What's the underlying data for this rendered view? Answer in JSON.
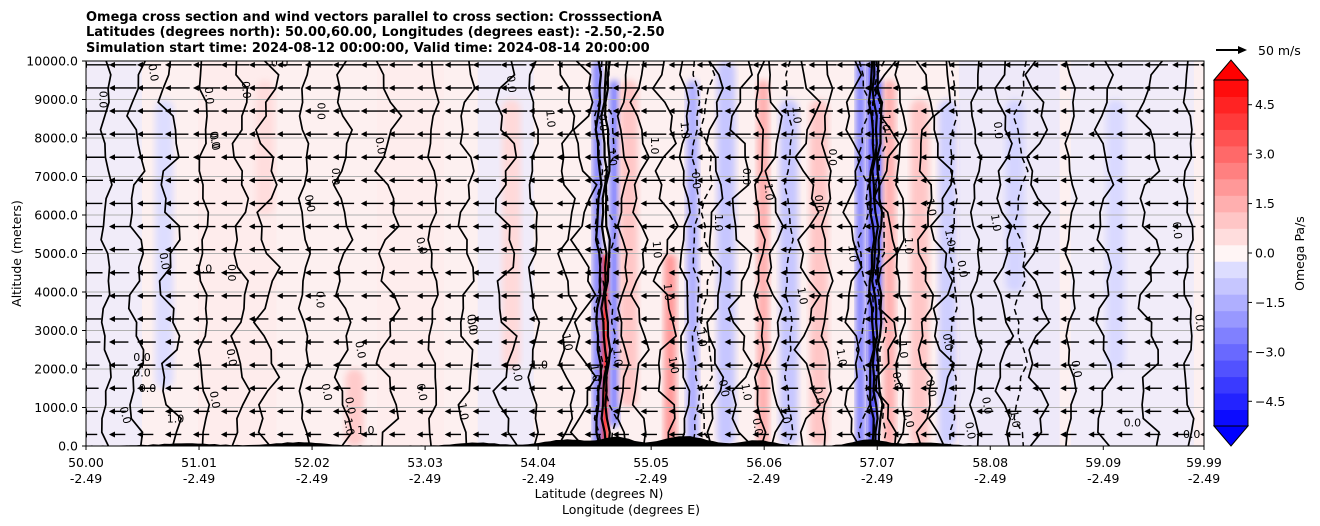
{
  "chart_data": {
    "type": "contourf",
    "title_lines": [
      "Omega cross section and wind vectors parallel to cross section: CrosssectionA",
      "Latitudes (degrees north): 50.00,60.00, Longitudes (degrees east): -2.50,-2.50",
      "Simulation start time: 2024-08-12 00:00:00, Valid time: 2024-08-14 20:00:00"
    ],
    "ylabel": "Altitude (meters)",
    "xlabel_lat": "Latitude (degrees N)",
    "xlabel_lon": "Longitude (degrees E)",
    "ylim": [
      0,
      10000
    ],
    "y_ticks": [
      {
        "value": 0,
        "label": "0.0"
      },
      {
        "value": 1000,
        "label": "1000.0"
      },
      {
        "value": 2000,
        "label": "2000.0"
      },
      {
        "value": 3000,
        "label": "3000.0"
      },
      {
        "value": 4000,
        "label": "4000.0"
      },
      {
        "value": 5000,
        "label": "5000.0"
      },
      {
        "value": 6000,
        "label": "6000.0"
      },
      {
        "value": 7000,
        "label": "7000.0"
      },
      {
        "value": 8000,
        "label": "8000.0"
      },
      {
        "value": 9000,
        "label": "9000.0"
      },
      {
        "value": 10000,
        "label": "10000.0"
      }
    ],
    "xlim": [
      50.0,
      59.99
    ],
    "x_ticks": [
      {
        "lat": "50.00",
        "lon": "-2.49",
        "value": 50.0
      },
      {
        "lat": "51.01",
        "lon": "-2.49",
        "value": 51.01
      },
      {
        "lat": "52.02",
        "lon": "-2.49",
        "value": 52.02
      },
      {
        "lat": "53.03",
        "lon": "-2.49",
        "value": 53.03
      },
      {
        "lat": "54.04",
        "lon": "-2.49",
        "value": 54.04
      },
      {
        "lat": "55.05",
        "lon": "-2.49",
        "value": 55.05
      },
      {
        "lat": "56.06",
        "lon": "-2.49",
        "value": 56.06
      },
      {
        "lat": "57.07",
        "lon": "-2.49",
        "value": 57.07
      },
      {
        "lat": "58.08",
        "lon": "-2.49",
        "value": 58.08
      },
      {
        "lat": "59.09",
        "lon": "-2.49",
        "value": 59.09
      },
      {
        "lat": "59.99",
        "lon": "-2.49",
        "value": 59.99
      }
    ],
    "grid": "horizontal",
    "colorbar": {
      "label": "Omega Pa/s",
      "range": [
        -5.25,
        5.25
      ],
      "ticks": [
        {
          "value": 4.5,
          "label": "4.5"
        },
        {
          "value": 3.0,
          "label": "3.0"
        },
        {
          "value": 1.5,
          "label": "1.5"
        },
        {
          "value": 0.0,
          "label": "0.0"
        },
        {
          "value": -1.5,
          "label": "−1.5"
        },
        {
          "value": -3.0,
          "label": "−3.0"
        },
        {
          "value": -4.5,
          "label": "−4.5"
        }
      ],
      "extend": "both",
      "low_color": "#0000ff",
      "high_color": "#ff0000"
    },
    "quiver_key": {
      "label": "50 m/s"
    },
    "omega_features": [
      {
        "lat": 54.63,
        "alt_min": 0,
        "alt_max": 5000,
        "value": 4.5
      },
      {
        "lat": 54.57,
        "alt_min": 0,
        "alt_max": 10000,
        "value": -2.5
      },
      {
        "lat": 54.72,
        "alt_min": 500,
        "alt_max": 9500,
        "value": -2.5
      },
      {
        "lat": 54.85,
        "alt_min": 1000,
        "alt_max": 9500,
        "value": 1.0
      },
      {
        "lat": 55.22,
        "alt_min": 0,
        "alt_max": 5000,
        "value": 2.0
      },
      {
        "lat": 55.42,
        "alt_min": 0,
        "alt_max": 9500,
        "value": -1.5
      },
      {
        "lat": 55.72,
        "alt_min": 0,
        "alt_max": 10000,
        "value": -1.0
      },
      {
        "lat": 56.05,
        "alt_min": 0,
        "alt_max": 9500,
        "value": 1.5
      },
      {
        "lat": 56.28,
        "alt_min": 0,
        "alt_max": 9000,
        "value": -1.0
      },
      {
        "lat": 56.55,
        "alt_min": 0,
        "alt_max": 9000,
        "value": 1.0
      },
      {
        "lat": 56.92,
        "alt_min": 0,
        "alt_max": 10000,
        "value": -2.5
      },
      {
        "lat": 57.03,
        "alt_min": 0,
        "alt_max": 10000,
        "value": -4.0
      },
      {
        "lat": 57.08,
        "alt_min": 3000,
        "alt_max": 9500,
        "value": -3.0
      },
      {
        "lat": 57.18,
        "alt_min": 0,
        "alt_max": 9500,
        "value": 1.5
      },
      {
        "lat": 57.45,
        "alt_min": 0,
        "alt_max": 9000,
        "value": 1.0
      },
      {
        "lat": 57.7,
        "alt_min": 0,
        "alt_max": 9000,
        "value": -0.8
      },
      {
        "lat": 58.3,
        "alt_min": 4000,
        "alt_max": 9000,
        "value": -0.7
      },
      {
        "lat": 59.2,
        "alt_min": 2000,
        "alt_max": 9000,
        "value": -0.6
      },
      {
        "lat": 52.4,
        "alt_min": 0,
        "alt_max": 2000,
        "value": 0.9
      },
      {
        "lat": 51.6,
        "alt_min": 6000,
        "alt_max": 9500,
        "value": 0.5
      },
      {
        "lat": 53.8,
        "alt_min": 2000,
        "alt_max": 9000,
        "value": 0.6
      },
      {
        "lat": 50.7,
        "alt_min": 1500,
        "alt_max": 9000,
        "value": -0.5
      }
    ],
    "contour_labels": [
      {
        "text": "0.0",
        "lat": 50.15,
        "alt": 9000,
        "rot": 90
      },
      {
        "text": "0.0",
        "lat": 50.6,
        "alt": 9700,
        "rot": 80
      },
      {
        "text": "0.0",
        "lat": 51.1,
        "alt": 9100,
        "rot": 85
      },
      {
        "text": "0.0",
        "lat": 51.43,
        "alt": 9250,
        "rot": 85
      },
      {
        "text": "0.0",
        "lat": 51.15,
        "alt": 7900,
        "rot": 80
      },
      {
        "text": "0.0",
        "lat": 51.15,
        "alt": 7950,
        "rot": 80
      },
      {
        "text": "0.0",
        "lat": 51.73,
        "alt": 9950,
        "rot": 0
      },
      {
        "text": "0.0",
        "lat": 52.1,
        "alt": 8700,
        "rot": 90
      },
      {
        "text": "0.0",
        "lat": 52.63,
        "alt": 7800,
        "rot": 80
      },
      {
        "text": "0.0",
        "lat": 52.0,
        "alt": 6300,
        "rot": 80
      },
      {
        "text": "0.0",
        "lat": 52.23,
        "alt": 7000,
        "rot": 90
      },
      {
        "text": "0.0",
        "lat": 50.7,
        "alt": 4800,
        "rot": 80
      },
      {
        "text": "1.0",
        "lat": 51.05,
        "alt": 4600,
        "rot": 0
      },
      {
        "text": "0.0",
        "lat": 51.3,
        "alt": 4500,
        "rot": 90
      },
      {
        "text": "0.0",
        "lat": 52.09,
        "alt": 3800,
        "rot": 90
      },
      {
        "text": "0.0",
        "lat": 52.45,
        "alt": 2500,
        "rot": 80
      },
      {
        "text": "0.0",
        "lat": 53.45,
        "alt": 3100,
        "rot": 80
      },
      {
        "text": "0.0",
        "lat": 53.0,
        "alt": 5200,
        "rot": 75
      },
      {
        "text": "0.0",
        "lat": 50.5,
        "alt": 2300,
        "rot": 0
      },
      {
        "text": "0.0",
        "lat": 50.5,
        "alt": 1900,
        "rot": 0
      },
      {
        "text": "0.0",
        "lat": 50.55,
        "alt": 1500,
        "rot": 0
      },
      {
        "text": "0.0",
        "lat": 50.35,
        "alt": 800,
        "rot": 75
      },
      {
        "text": "0.0",
        "lat": 51.3,
        "alt": 2300,
        "rot": 80
      },
      {
        "text": "0.0",
        "lat": 51.15,
        "alt": 1200,
        "rot": 80
      },
      {
        "text": "1.0",
        "lat": 50.8,
        "alt": 700,
        "rot": 0
      },
      {
        "text": "0.0",
        "lat": 52.15,
        "alt": 1400,
        "rot": 80
      },
      {
        "text": "0.0",
        "lat": 52.36,
        "alt": 1050,
        "rot": 80
      },
      {
        "text": "1.0",
        "lat": 52.35,
        "alt": 500,
        "rot": 80
      },
      {
        "text": "1.0",
        "lat": 52.5,
        "alt": 400,
        "rot": 0
      },
      {
        "text": "0.0",
        "lat": 53.0,
        "alt": 1400,
        "rot": 80
      },
      {
        "text": "1.0",
        "lat": 53.37,
        "alt": 900,
        "rot": 80
      },
      {
        "text": "1.0",
        "lat": 54.55,
        "alt": 1900,
        "rot": 80
      },
      {
        "text": "0.0",
        "lat": 53.85,
        "alt": 1900,
        "rot": 80
      },
      {
        "text": "0.0",
        "lat": 53.45,
        "alt": 3200,
        "rot": 80
      },
      {
        "text": "1.0",
        "lat": 54.3,
        "alt": 2700,
        "rot": 80
      },
      {
        "text": "1.0",
        "lat": 54.7,
        "alt": 7500,
        "rot": 85
      },
      {
        "text": "0.0",
        "lat": 54.62,
        "alt": 8400,
        "rot": 85
      },
      {
        "text": "1.0",
        "lat": 55.08,
        "alt": 7800,
        "rot": 90
      },
      {
        "text": "1.0",
        "lat": 55.35,
        "alt": 8200,
        "rot": 85
      },
      {
        "text": "1.0",
        "lat": 55.1,
        "alt": 5100,
        "rot": 85
      },
      {
        "text": "0.0",
        "lat": 55.45,
        "alt": 6900,
        "rot": 85
      },
      {
        "text": "0.0",
        "lat": 55.9,
        "alt": 7000,
        "rot": 90
      },
      {
        "text": "1.0",
        "lat": 56.1,
        "alt": 6600,
        "rot": 85
      },
      {
        "text": "0.0",
        "lat": 56.55,
        "alt": 6300,
        "rot": 85
      },
      {
        "text": "0.0",
        "lat": 56.67,
        "alt": 7500,
        "rot": 90
      },
      {
        "text": "1.0",
        "lat": 56.35,
        "alt": 8600,
        "rot": 85
      },
      {
        "text": "1.0",
        "lat": 56.85,
        "alt": 5000,
        "rot": 85
      },
      {
        "text": "1.0",
        "lat": 57.15,
        "alt": 8400,
        "rot": 90
      },
      {
        "text": "1.0",
        "lat": 57.35,
        "alt": 5200,
        "rot": 90
      },
      {
        "text": "1.0",
        "lat": 57.72,
        "alt": 5400,
        "rot": 80
      },
      {
        "text": "1.0",
        "lat": 57.55,
        "alt": 6200,
        "rot": 80
      },
      {
        "text": "0.0",
        "lat": 57.83,
        "alt": 4600,
        "rot": 80
      },
      {
        "text": "0.0",
        "lat": 57.7,
        "alt": 2700,
        "rot": 80
      },
      {
        "text": "0.0",
        "lat": 58.15,
        "alt": 8200,
        "rot": 85
      },
      {
        "text": "1.0",
        "lat": 58.13,
        "alt": 5800,
        "rot": 80
      },
      {
        "text": "1.0",
        "lat": 56.4,
        "alt": 3900,
        "rot": 80
      },
      {
        "text": "0.0",
        "lat": 56.55,
        "alt": 1300,
        "rot": 80
      },
      {
        "text": "1.0",
        "lat": 56.25,
        "alt": 800,
        "rot": 80
      },
      {
        "text": "1.0",
        "lat": 55.9,
        "alt": 1400,
        "rot": 80
      },
      {
        "text": "0.0",
        "lat": 55.7,
        "alt": 1500,
        "rot": 80
      },
      {
        "text": "0.0",
        "lat": 56.0,
        "alt": 500,
        "rot": 80
      },
      {
        "text": "0.0",
        "lat": 57.25,
        "alt": 1700,
        "rot": 80
      },
      {
        "text": "0.0",
        "lat": 57.55,
        "alt": 1500,
        "rot": 80
      },
      {
        "text": "0.0",
        "lat": 57.35,
        "alt": 700,
        "rot": 80
      },
      {
        "text": "0.0",
        "lat": 57.9,
        "alt": 400,
        "rot": 80
      },
      {
        "text": "0.0",
        "lat": 58.85,
        "alt": 2000,
        "rot": 80
      },
      {
        "text": "0.0",
        "lat": 58.05,
        "alt": 1050,
        "rot": 80
      },
      {
        "text": "1.0",
        "lat": 58.3,
        "alt": 700,
        "rot": 80
      },
      {
        "text": "0.0",
        "lat": 59.88,
        "alt": 300,
        "rot": 0
      },
      {
        "text": "0.0",
        "lat": 59.95,
        "alt": 3200,
        "rot": 85
      },
      {
        "text": "0.0",
        "lat": 59.35,
        "alt": 600,
        "rot": 0
      },
      {
        "text": "0.0",
        "lat": 59.75,
        "alt": 5600,
        "rot": 85
      },
      {
        "text": "1.0",
        "lat": 54.05,
        "alt": 2100,
        "rot": 0
      },
      {
        "text": "1.0",
        "lat": 55.25,
        "alt": 2100,
        "rot": 80
      },
      {
        "text": "1.0",
        "lat": 55.5,
        "alt": 2800,
        "rot": 80
      },
      {
        "text": "1.0",
        "lat": 54.75,
        "alt": 2300,
        "rot": 85
      },
      {
        "text": "1.0",
        "lat": 55.2,
        "alt": 4000,
        "rot": 85
      },
      {
        "text": "1.0",
        "lat": 54.15,
        "alt": 8500,
        "rot": 85
      },
      {
        "text": "0.0",
        "lat": 53.8,
        "alt": 9400,
        "rot": 85
      },
      {
        "text": "1.0",
        "lat": 55.65,
        "alt": 5800,
        "rot": 90
      },
      {
        "text": "1.0",
        "lat": 56.75,
        "alt": 2300,
        "rot": 80
      },
      {
        "text": "1.0",
        "lat": 57.3,
        "alt": 2500,
        "rot": 85
      }
    ]
  }
}
